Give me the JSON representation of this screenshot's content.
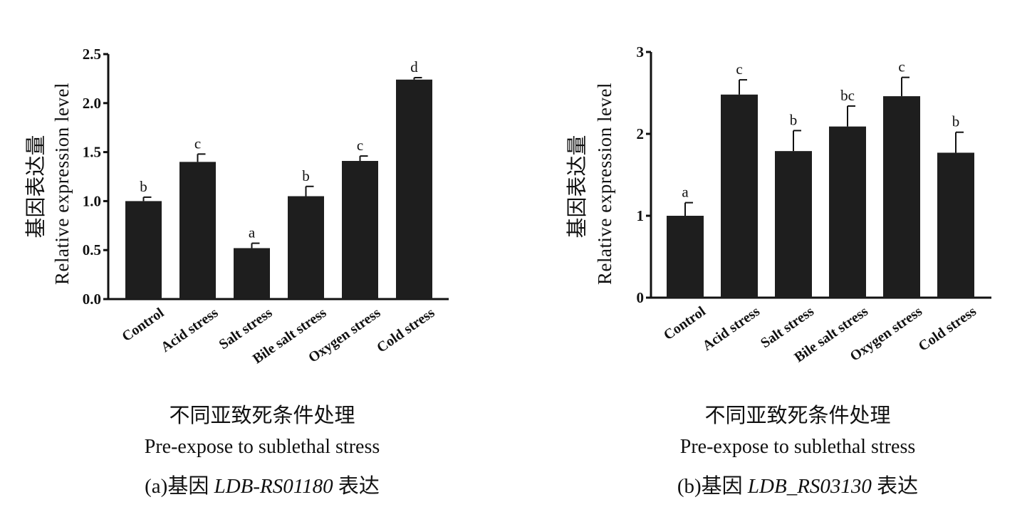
{
  "chart_data": [
    {
      "type": "bar",
      "categories": [
        "Control",
        "Acid stress",
        "Salt stress",
        "Bile salt stress",
        "Oxygen stress",
        "Cold stress"
      ],
      "values": [
        1.0,
        1.4,
        0.52,
        1.05,
        1.41,
        2.24
      ],
      "errors": [
        0.04,
        0.08,
        0.05,
        0.1,
        0.05,
        0.02
      ],
      "significance": [
        "b",
        "c",
        "a",
        "b",
        "c",
        "d"
      ],
      "ylim": [
        0,
        2.5
      ],
      "yticks": [
        "0.0",
        "0.5",
        "1.0",
        "1.5",
        "2.0",
        "2.5"
      ],
      "ylabel_cn": "基因表达量",
      "ylabel": "Relative expression level",
      "xlabel_cn": "不同亚致死条件处理",
      "xlabel": "Pre-expose to sublethal stress",
      "caption_prefix": "(a)基因 ",
      "caption_gene": "LDB-RS01180",
      "caption_suffix": " 表达",
      "bar_color": "#1e1e1e"
    },
    {
      "type": "bar",
      "categories": [
        "Control",
        "Acid stress",
        "Salt stress",
        "Bile salt stress",
        "Oxygen stress",
        "Cold stress"
      ],
      "values": [
        1.0,
        2.48,
        1.79,
        2.09,
        2.46,
        1.77
      ],
      "errors": [
        0.16,
        0.18,
        0.25,
        0.25,
        0.23,
        0.25
      ],
      "significance": [
        "a",
        "c",
        "b",
        "bc",
        "c",
        "b"
      ],
      "ylim": [
        0,
        3
      ],
      "yticks": [
        "0",
        "1",
        "2",
        "3"
      ],
      "ylabel_cn": "基因表达量",
      "ylabel": "Relative expression level",
      "xlabel_cn": "不同亚致死条件处理",
      "xlabel": "Pre-expose to sublethal stress",
      "caption_prefix": "(b)基因 ",
      "caption_gene": "LDB_RS03130",
      "caption_suffix": " 表达",
      "bar_color": "#1e1e1e"
    }
  ]
}
